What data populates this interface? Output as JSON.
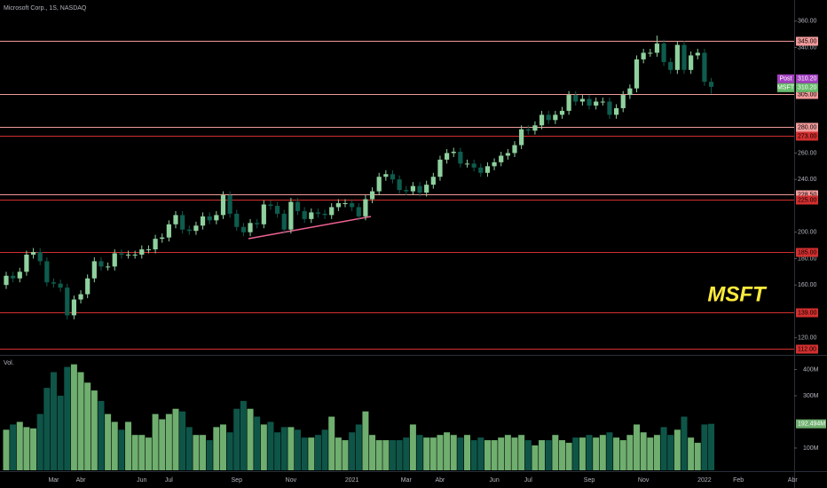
{
  "chart_data": {
    "type": "candlestick",
    "title": "Microsoft Corp., 1S, NASDAQ",
    "annotation": "MSFT",
    "up_color": "#8fd19e",
    "down_color": "#0e5c4d",
    "categories": [
      null,
      null,
      null,
      null,
      null,
      null,
      null,
      "Mar",
      null,
      null,
      null,
      "Abr",
      null,
      null,
      null,
      null,
      null,
      null,
      null,
      null,
      "Jun",
      null,
      null,
      null,
      "Jul",
      null,
      null,
      null,
      null,
      null,
      null,
      null,
      null,
      null,
      "Sep",
      null,
      null,
      null,
      null,
      null,
      null,
      null,
      "Nov",
      null,
      null,
      null,
      null,
      null,
      null,
      null,
      null,
      "2021",
      null,
      null,
      null,
      null,
      null,
      null,
      null,
      "Mar",
      null,
      null,
      null,
      null,
      "Abr",
      null,
      null,
      null,
      null,
      null,
      null,
      null,
      "Jun",
      null,
      null,
      null,
      null,
      "Jul",
      null,
      null,
      null,
      null,
      null,
      null,
      null,
      null,
      "Sep",
      null,
      null,
      null,
      null,
      null,
      null,
      null,
      "Nov",
      null,
      null,
      null,
      null,
      null,
      null,
      null,
      null,
      "2022",
      null,
      null,
      null,
      null,
      "Feb",
      null,
      null,
      null,
      null,
      null,
      null,
      null,
      "Abr"
    ],
    "open": [
      160,
      167,
      165,
      170,
      183,
      185,
      178,
      162,
      161,
      158,
      137,
      149,
      153,
      165,
      178,
      174,
      174,
      184,
      183,
      183,
      183,
      187,
      187,
      195,
      196,
      206,
      213,
      202,
      201,
      205,
      212,
      209,
      213,
      228,
      214,
      204,
      200,
      207,
      206,
      221,
      220,
      214,
      202,
      223,
      216,
      210,
      215,
      214,
      213,
      219,
      222,
      222,
      219,
      212,
      225,
      231,
      242,
      244,
      240,
      232,
      231,
      235,
      230,
      236,
      242,
      255,
      260,
      261,
      252,
      252,
      249,
      245,
      250,
      253,
      258,
      260,
      266,
      278,
      277,
      281,
      289,
      285,
      289,
      292,
      304,
      299,
      301,
      296,
      299,
      299,
      289,
      294,
      304,
      309,
      331,
      336,
      336,
      343,
      329,
      323,
      342,
      323,
      334,
      336,
      314,
      null,
      null,
      null,
      null,
      null,
      null,
      null,
      null,
      null,
      null,
      null,
      null
    ],
    "high": [
      170,
      170,
      173,
      186,
      188,
      188,
      181,
      165,
      164,
      161,
      152,
      156,
      168,
      181,
      181,
      177,
      187,
      187,
      186,
      186,
      190,
      190,
      198,
      199,
      209,
      216,
      216,
      205,
      208,
      215,
      215,
      216,
      231,
      231,
      217,
      207,
      210,
      210,
      224,
      224,
      223,
      217,
      226,
      226,
      219,
      218,
      218,
      217,
      222,
      225,
      225,
      225,
      222,
      228,
      234,
      245,
      247,
      247,
      243,
      235,
      238,
      238,
      239,
      245,
      258,
      263,
      264,
      264,
      255,
      255,
      252,
      253,
      256,
      261,
      263,
      269,
      281,
      281,
      284,
      292,
      292,
      292,
      295,
      307,
      307,
      304,
      304,
      302,
      302,
      302,
      297,
      307,
      312,
      334,
      339,
      339,
      349,
      346,
      332,
      345,
      345,
      337,
      339,
      339,
      317,
      null,
      null,
      null,
      null,
      null,
      null,
      null,
      null,
      null,
      null,
      null,
      null
    ],
    "low": [
      157,
      162,
      162,
      167,
      180,
      175,
      159,
      158,
      155,
      134,
      134,
      146,
      150,
      162,
      171,
      171,
      171,
      180,
      180,
      180,
      180,
      184,
      184,
      192,
      193,
      203,
      199,
      198,
      198,
      202,
      206,
      206,
      210,
      211,
      201,
      197,
      197,
      203,
      203,
      217,
      211,
      199,
      199,
      213,
      207,
      207,
      211,
      210,
      210,
      216,
      219,
      216,
      209,
      209,
      222,
      228,
      239,
      237,
      229,
      228,
      228,
      227,
      227,
      233,
      239,
      252,
      257,
      249,
      249,
      246,
      242,
      242,
      247,
      250,
      255,
      257,
      263,
      274,
      274,
      278,
      282,
      282,
      286,
      289,
      296,
      296,
      293,
      293,
      296,
      286,
      286,
      291,
      301,
      306,
      328,
      333,
      333,
      326,
      320,
      320,
      320,
      320,
      331,
      311,
      305,
      null,
      null,
      null,
      null,
      null,
      null,
      null,
      null,
      null,
      null,
      null,
      null
    ],
    "close": [
      167,
      165,
      170,
      183,
      185,
      178,
      162,
      161,
      158,
      137,
      149,
      153,
      165,
      178,
      174,
      174,
      184,
      183,
      183,
      183,
      187,
      187,
      195,
      196,
      206,
      213,
      202,
      201,
      205,
      212,
      209,
      213,
      228,
      214,
      204,
      200,
      207,
      206,
      221,
      220,
      214,
      202,
      223,
      216,
      210,
      215,
      214,
      213,
      219,
      222,
      222,
      219,
      212,
      225,
      231,
      242,
      244,
      240,
      232,
      231,
      235,
      230,
      236,
      242,
      255,
      260,
      261,
      252,
      252,
      249,
      245,
      250,
      253,
      258,
      260,
      266,
      278,
      277,
      281,
      289,
      285,
      289,
      292,
      304,
      299,
      301,
      296,
      299,
      299,
      289,
      294,
      304,
      309,
      331,
      336,
      336,
      343,
      329,
      323,
      342,
      323,
      334,
      336,
      314,
      310.2,
      null,
      null,
      null,
      null,
      null,
      null,
      null,
      null,
      null,
      null,
      null,
      null
    ],
    "ylim": [
      107,
      376
    ],
    "yticks": [
      {
        "value": 360,
        "label": "360.00"
      },
      {
        "value": 340,
        "label": "340.00"
      },
      {
        "value": 260,
        "label": "260.00"
      },
      {
        "value": 240,
        "label": "240.00"
      },
      {
        "value": 200,
        "label": "200.00"
      },
      {
        "value": 180,
        "label": "180.00"
      },
      {
        "value": 160,
        "label": "160.00"
      },
      {
        "value": 120,
        "label": "120.00"
      }
    ],
    "levels": [
      {
        "value": 345,
        "label": "345.00",
        "color": "#f19a9a"
      },
      {
        "value": 305,
        "label": "305.00",
        "color": "#f19a9a"
      },
      {
        "value": 280,
        "label": "280.00",
        "color": "#f19a9a"
      },
      {
        "value": 273,
        "label": "273.00",
        "color": "#d32f2f"
      },
      {
        "value": 228.5,
        "label": "228.50",
        "color": "#f19a9a"
      },
      {
        "value": 225,
        "label": "225.00",
        "color": "#d32f2f"
      },
      {
        "value": 185,
        "label": "185.00",
        "color": "#d32f2f"
      },
      {
        "value": 139,
        "label": "139.00",
        "color": "#d32f2f"
      },
      {
        "value": 112,
        "label": "112.00",
        "color": "#d32f2f"
      }
    ],
    "price_labels": [
      {
        "name": "Post",
        "value": 310.2,
        "label": "310.20",
        "color": "#a23fbf"
      },
      {
        "name": "MSFT",
        "value": 310.2,
        "label": "310.20",
        "color": "#66bb6a"
      }
    ],
    "volume": {
      "name": "Vol.",
      "up_color": "#6fae6f",
      "down_color": "#0e5548",
      "values": [
        170,
        190,
        200,
        180,
        175,
        230,
        330,
        390,
        300,
        410,
        420,
        390,
        350,
        320,
        280,
        230,
        200,
        170,
        200,
        150,
        150,
        140,
        230,
        210,
        230,
        250,
        240,
        180,
        150,
        150,
        130,
        180,
        190,
        160,
        250,
        280,
        250,
        220,
        190,
        200,
        160,
        180,
        180,
        170,
        140,
        140,
        150,
        170,
        220,
        140,
        130,
        160,
        190,
        240,
        150,
        130,
        130,
        130,
        130,
        140,
        190,
        150,
        140,
        140,
        150,
        160,
        150,
        140,
        150,
        130,
        140,
        130,
        130,
        140,
        150,
        140,
        150,
        130,
        110,
        130,
        130,
        150,
        130,
        120,
        140,
        140,
        150,
        140,
        150,
        160,
        140,
        130,
        150,
        190,
        160,
        140,
        150,
        180,
        150,
        170,
        220,
        140,
        120,
        190,
        192.494,
        null,
        null,
        null,
        null,
        null,
        null,
        null,
        null,
        null,
        null,
        null,
        null
      ],
      "current_label": "192.494M",
      "ylim": [
        15,
        456
      ],
      "yticks": [
        {
          "value": 400,
          "label": "400M"
        },
        {
          "value": 300,
          "label": "300M"
        },
        {
          "value": 100,
          "label": "100M"
        }
      ]
    }
  }
}
